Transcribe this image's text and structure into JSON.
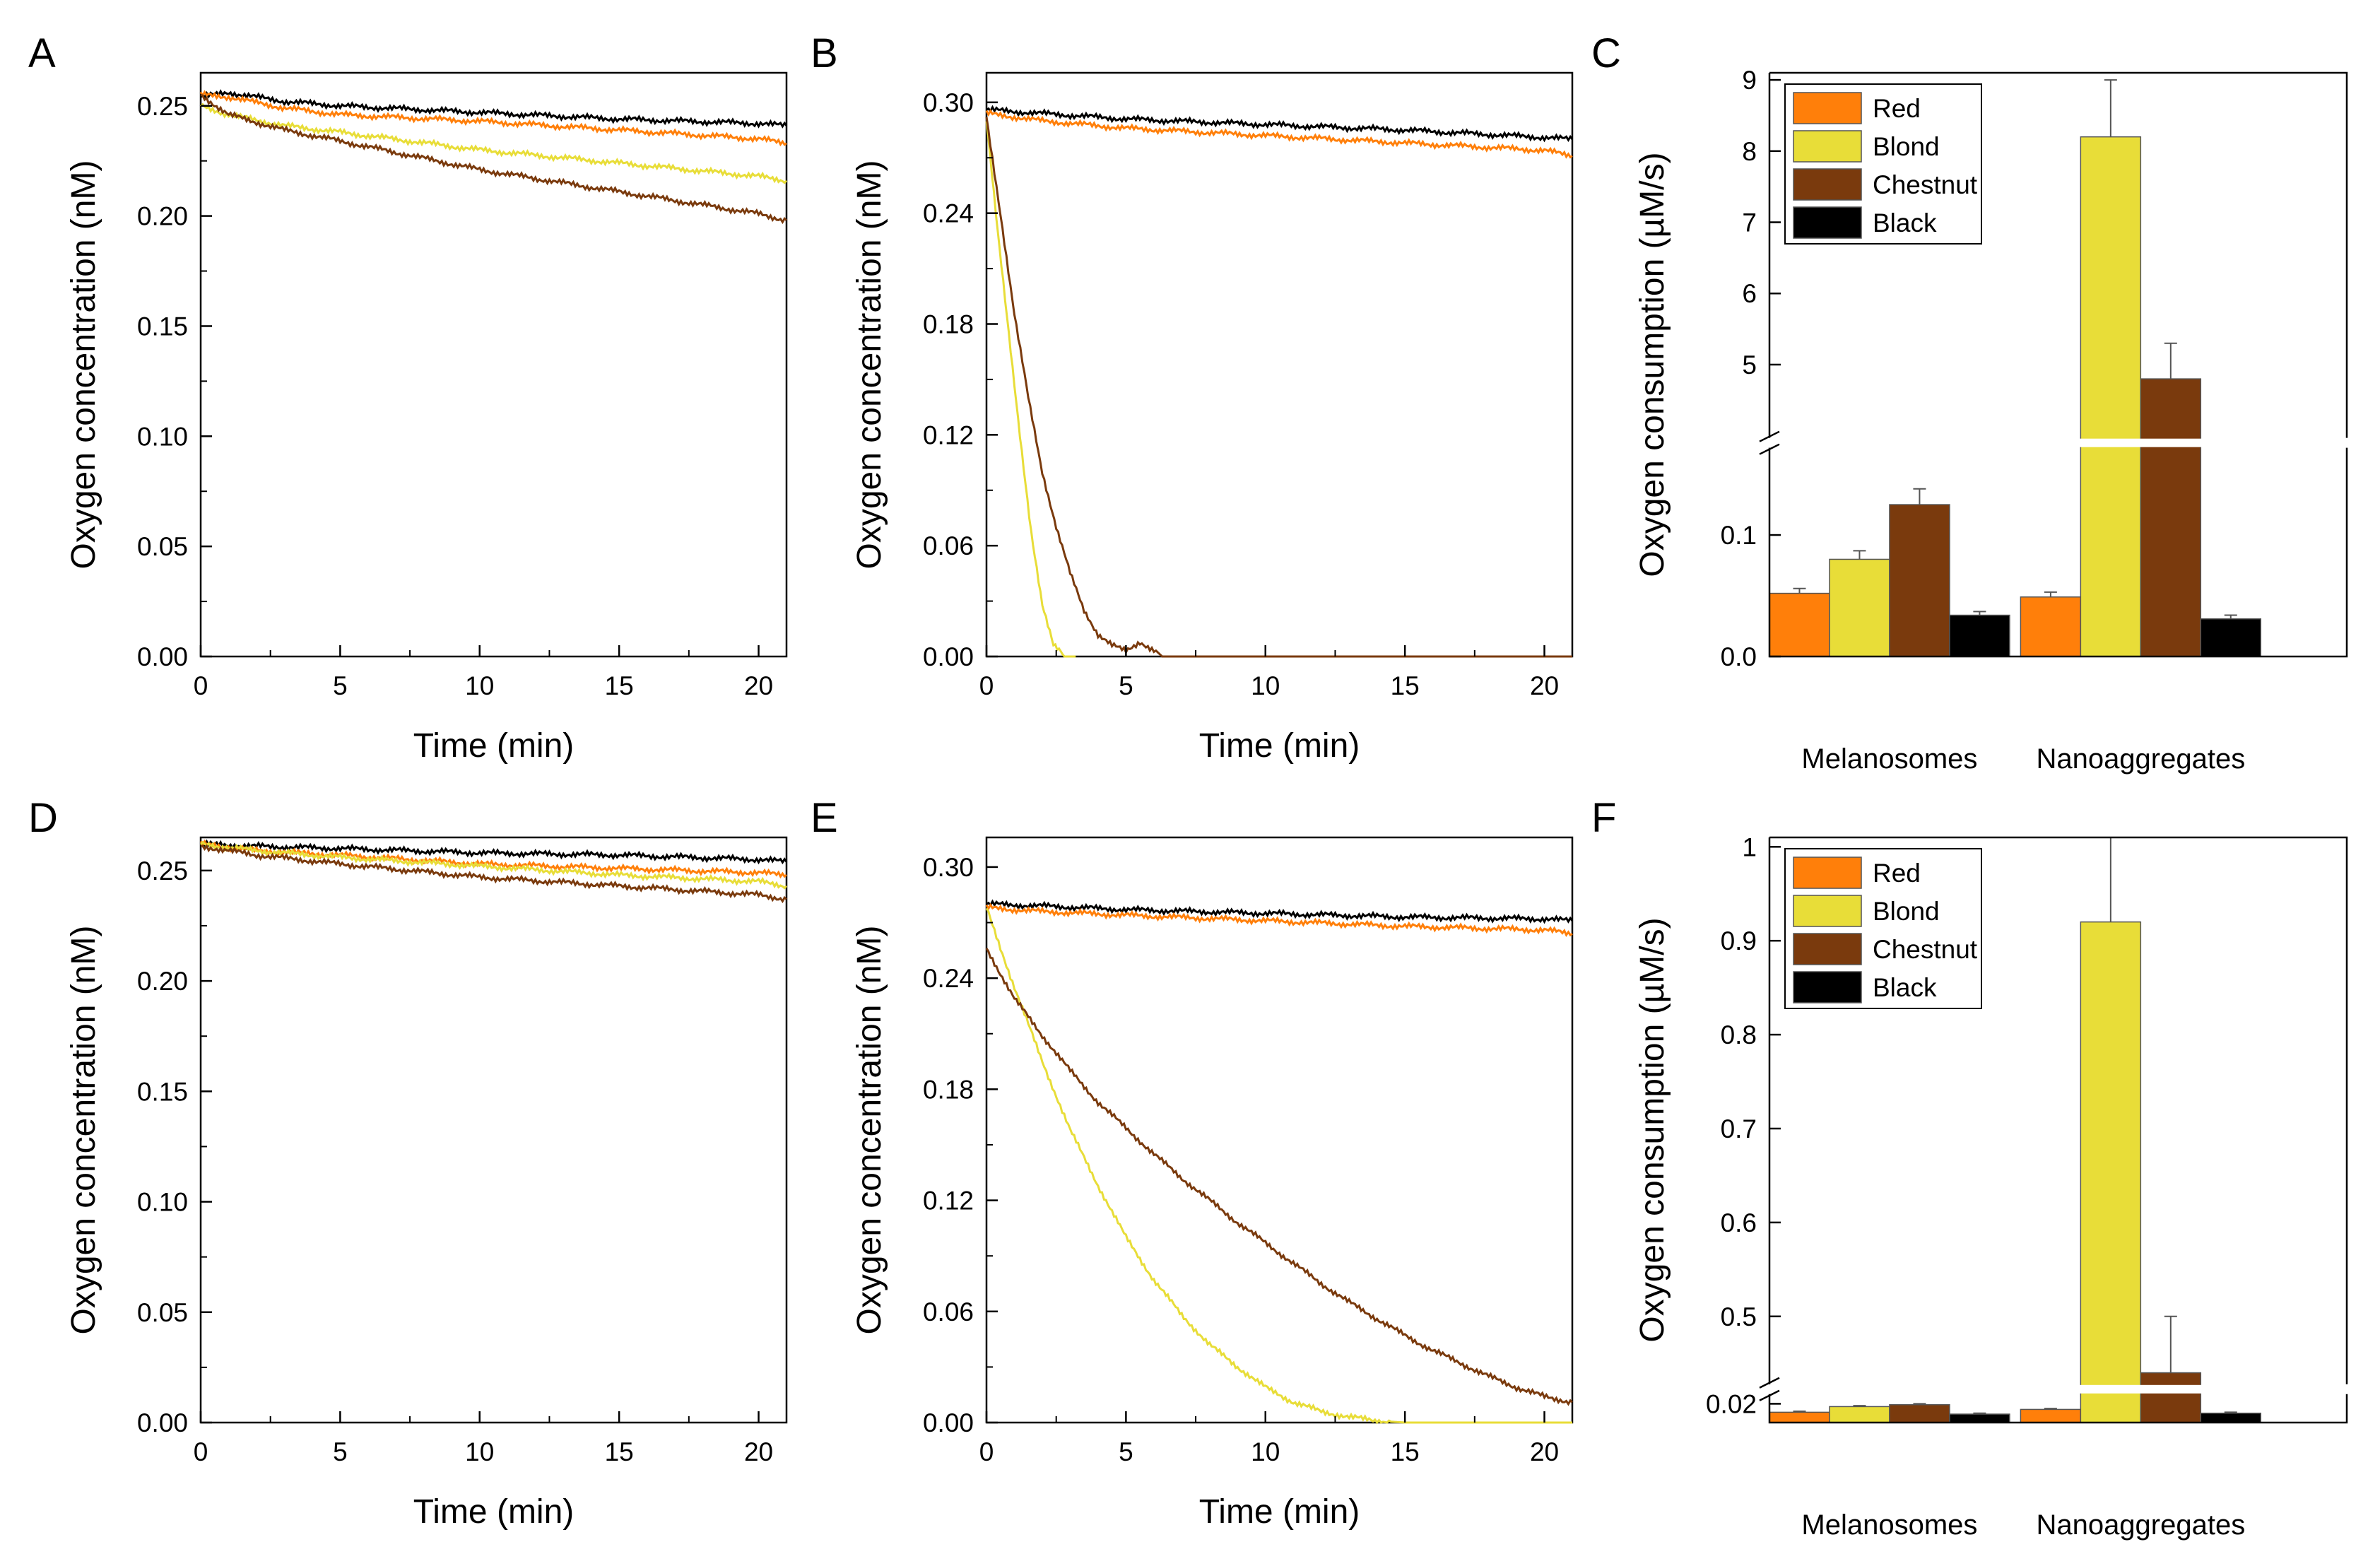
{
  "colors": {
    "red": "#ff7f0a",
    "blond": "#e8dd38",
    "chestnut": "#7a3a0d",
    "black": "#000000"
  },
  "chart_data": [
    {
      "panel": "A",
      "type": "line",
      "xlabel": "Time (min)",
      "ylabel": "Oxygen concentration (nM)",
      "xlim": [
        0,
        21
      ],
      "ylim": [
        0,
        0.265
      ],
      "xticks": [
        0,
        5,
        10,
        15,
        20
      ],
      "xtick_labels": [
        "0",
        "5",
        "10",
        "15",
        "20"
      ],
      "yticks": [
        0,
        0.05,
        0.1,
        0.15,
        0.2,
        0.25
      ],
      "ytick_labels": [
        "0.00",
        "0.05",
        "0.10",
        "0.15",
        "0.20",
        "0.25"
      ],
      "series": [
        {
          "name": "Black",
          "x": [
            0,
            1,
            3,
            5,
            10,
            15,
            20,
            21
          ],
          "y": [
            0.254,
            0.256,
            0.252,
            0.25,
            0.247,
            0.244,
            0.242,
            0.241
          ]
        },
        {
          "name": "Red",
          "x": [
            0,
            1,
            3,
            5,
            10,
            15,
            20,
            21
          ],
          "y": [
            0.255,
            0.254,
            0.249,
            0.246,
            0.243,
            0.239,
            0.235,
            0.233
          ]
        },
        {
          "name": "Blond",
          "x": [
            0,
            1,
            3,
            5,
            10,
            15,
            20,
            21
          ],
          "y": [
            0.25,
            0.246,
            0.241,
            0.238,
            0.23,
            0.224,
            0.218,
            0.216
          ]
        },
        {
          "name": "Chestnut",
          "x": [
            0,
            1,
            3,
            5,
            10,
            15,
            20,
            21
          ],
          "y": [
            0.255,
            0.246,
            0.239,
            0.234,
            0.221,
            0.211,
            0.201,
            0.198
          ]
        }
      ]
    },
    {
      "panel": "B",
      "type": "line",
      "xlabel": "Time (min)",
      "ylabel": "Oxygen concentration (nM)",
      "xlim": [
        0,
        21
      ],
      "ylim": [
        0,
        0.316
      ],
      "xticks": [
        0,
        5,
        10,
        15,
        20
      ],
      "xtick_labels": [
        "0",
        "5",
        "10",
        "15",
        "20"
      ],
      "yticks": [
        0,
        0.06,
        0.12,
        0.18,
        0.24,
        0.3
      ],
      "ytick_labels": [
        "0.00",
        "0.06",
        "0.12",
        "0.18",
        "0.24",
        "0.30"
      ],
      "series": [
        {
          "name": "Black",
          "x": [
            0,
            2,
            5,
            10,
            15,
            20,
            21
          ],
          "y": [
            0.296,
            0.294,
            0.291,
            0.288,
            0.285,
            0.281,
            0.28
          ]
        },
        {
          "name": "Red",
          "x": [
            0,
            2,
            5,
            10,
            15,
            20,
            21
          ],
          "y": [
            0.294,
            0.29,
            0.286,
            0.282,
            0.278,
            0.274,
            0.271
          ]
        },
        {
          "name": "Blond",
          "x": [
            0,
            0.4,
            0.8,
            1.2,
            1.6,
            2.0,
            2.4,
            2.8,
            3.2
          ],
          "y": [
            0.29,
            0.23,
            0.175,
            0.12,
            0.068,
            0.028,
            0.006,
            0.0,
            0.0
          ]
        },
        {
          "name": "Chestnut",
          "x": [
            0,
            0.5,
            1.0,
            1.5,
            2.0,
            2.5,
            3.0,
            3.5,
            4.0,
            4.5,
            5.0,
            5.5,
            6.0,
            6.3,
            21
          ],
          "y": [
            0.292,
            0.24,
            0.185,
            0.14,
            0.1,
            0.07,
            0.045,
            0.025,
            0.012,
            0.006,
            0.003,
            0.008,
            0.003,
            0.0,
            0.0
          ]
        }
      ]
    },
    {
      "panel": "C",
      "type": "bar",
      "categories": [
        "Melanosomes",
        "Nanoaggregates"
      ],
      "ylabel": "Oxygen consumption (µM/s)",
      "y_axis_break": true,
      "lower_ylim": [
        0,
        0.17
      ],
      "upper_ylim": [
        4.0,
        9.1
      ],
      "lower_yticks": [
        0.0,
        0.1
      ],
      "lower_ytick_labels": [
        "0.0",
        "0.1"
      ],
      "upper_yticks": [
        5,
        6,
        7,
        8,
        9
      ],
      "upper_ytick_labels": [
        "5",
        "6",
        "7",
        "8",
        "9"
      ],
      "series": [
        {
          "name": "Red",
          "values": [
            0.052,
            0.049
          ],
          "errors": [
            0.004,
            0.004
          ]
        },
        {
          "name": "Blond",
          "values": [
            0.08,
            8.2
          ],
          "errors": [
            0.007,
            0.8
          ]
        },
        {
          "name": "Chestnut",
          "values": [
            0.125,
            4.8
          ],
          "errors": [
            0.013,
            0.5
          ]
        },
        {
          "name": "Black",
          "values": [
            0.034,
            0.031
          ],
          "errors": [
            0.003,
            0.003
          ]
        }
      ],
      "legend": [
        "Red",
        "Blond",
        "Chestnut",
        "Black"
      ]
    },
    {
      "panel": "D",
      "type": "line",
      "xlabel": "Time (min)",
      "ylabel": "Oxygen concentration (nM)",
      "xlim": [
        0,
        21
      ],
      "ylim": [
        0,
        0.265
      ],
      "xticks": [
        0,
        5,
        10,
        15,
        20
      ],
      "xtick_labels": [
        "0",
        "5",
        "10",
        "15",
        "20"
      ],
      "yticks": [
        0,
        0.05,
        0.1,
        0.15,
        0.2,
        0.25
      ],
      "ytick_labels": [
        "0.00",
        "0.05",
        "0.10",
        "0.15",
        "0.20",
        "0.25"
      ],
      "series": [
        {
          "name": "Black",
          "x": [
            0,
            2,
            5,
            10,
            15,
            20,
            21
          ],
          "y": [
            0.262,
            0.261,
            0.26,
            0.258,
            0.257,
            0.255,
            0.254
          ]
        },
        {
          "name": "Red",
          "x": [
            0,
            2,
            5,
            10,
            15,
            20,
            21
          ],
          "y": [
            0.262,
            0.259,
            0.257,
            0.253,
            0.251,
            0.249,
            0.248
          ]
        },
        {
          "name": "Blond",
          "x": [
            0,
            2,
            5,
            10,
            15,
            20,
            21
          ],
          "y": [
            0.262,
            0.259,
            0.256,
            0.252,
            0.248,
            0.245,
            0.243
          ]
        },
        {
          "name": "Chestnut",
          "x": [
            0,
            2,
            5,
            10,
            15,
            20,
            21
          ],
          "y": [
            0.261,
            0.257,
            0.253,
            0.247,
            0.243,
            0.239,
            0.237
          ]
        }
      ]
    },
    {
      "panel": "E",
      "type": "line",
      "xlabel": "Time (min)",
      "ylabel": "Oxygen concentration (nM)",
      "xlim": [
        0,
        21
      ],
      "ylim": [
        0,
        0.316
      ],
      "xticks": [
        0,
        5,
        10,
        15,
        20
      ],
      "xtick_labels": [
        "0",
        "5",
        "10",
        "15",
        "20"
      ],
      "yticks": [
        0,
        0.06,
        0.12,
        0.18,
        0.24,
        0.3
      ],
      "ytick_labels": [
        "0.00",
        "0.06",
        "0.12",
        "0.18",
        "0.24",
        "0.30"
      ],
      "series": [
        {
          "name": "Black",
          "x": [
            0,
            2,
            5,
            10,
            15,
            20,
            21
          ],
          "y": [
            0.28,
            0.279,
            0.277,
            0.275,
            0.273,
            0.272,
            0.271
          ]
        },
        {
          "name": "Red",
          "x": [
            0,
            2,
            5,
            10,
            15,
            20,
            21
          ],
          "y": [
            0.278,
            0.276,
            0.274,
            0.271,
            0.268,
            0.266,
            0.264
          ]
        },
        {
          "name": "Blond",
          "x": [
            0,
            1,
            2,
            3,
            4,
            5,
            6,
            7,
            8,
            9,
            10,
            11,
            12,
            13,
            14,
            15,
            21
          ],
          "y": [
            0.278,
            0.235,
            0.195,
            0.158,
            0.128,
            0.1,
            0.077,
            0.058,
            0.042,
            0.03,
            0.019,
            0.011,
            0.006,
            0.003,
            0.001,
            0.0,
            0.0
          ]
        },
        {
          "name": "Chestnut",
          "x": [
            0,
            1,
            2,
            3,
            4,
            5,
            6,
            7,
            8,
            9,
            10,
            11,
            12,
            13,
            14,
            15,
            16,
            17,
            18,
            19,
            20,
            21
          ],
          "y": [
            0.256,
            0.229,
            0.209,
            0.19,
            0.173,
            0.159,
            0.145,
            0.132,
            0.12,
            0.108,
            0.097,
            0.086,
            0.075,
            0.065,
            0.056,
            0.047,
            0.039,
            0.032,
            0.025,
            0.019,
            0.014,
            0.011
          ]
        }
      ]
    },
    {
      "panel": "F",
      "type": "bar",
      "categories": [
        "Melanosomes",
        "Nanoaggregates"
      ],
      "ylabel": "Oxygen consumption (µM/s)",
      "y_axis_break": true,
      "lower_ylim": [
        0.0,
        0.028
      ],
      "upper_ylim": [
        0.43,
        1.01
      ],
      "lower_yticks": [
        0.02
      ],
      "lower_ytick_labels": [
        "0.02"
      ],
      "upper_yticks": [
        0.5,
        0.6,
        0.7,
        0.8,
        0.9,
        1.0
      ],
      "upper_ytick_labels": [
        "0.5",
        "0.6",
        "0.7",
        "0.8",
        "0.9",
        "1"
      ],
      "series": [
        {
          "name": "Red",
          "values": [
            0.011,
            0.014
          ],
          "errors": [
            0.001,
            0.001
          ]
        },
        {
          "name": "Blond",
          "values": [
            0.017,
            0.92
          ],
          "errors": [
            0.001,
            0.09
          ]
        },
        {
          "name": "Chestnut",
          "values": [
            0.019,
            0.44
          ],
          "errors": [
            0.001,
            0.06
          ]
        },
        {
          "name": "Black",
          "values": [
            0.009,
            0.01
          ],
          "errors": [
            0.001,
            0.001
          ]
        }
      ],
      "legend": [
        "Red",
        "Blond",
        "Chestnut",
        "Black"
      ]
    }
  ]
}
